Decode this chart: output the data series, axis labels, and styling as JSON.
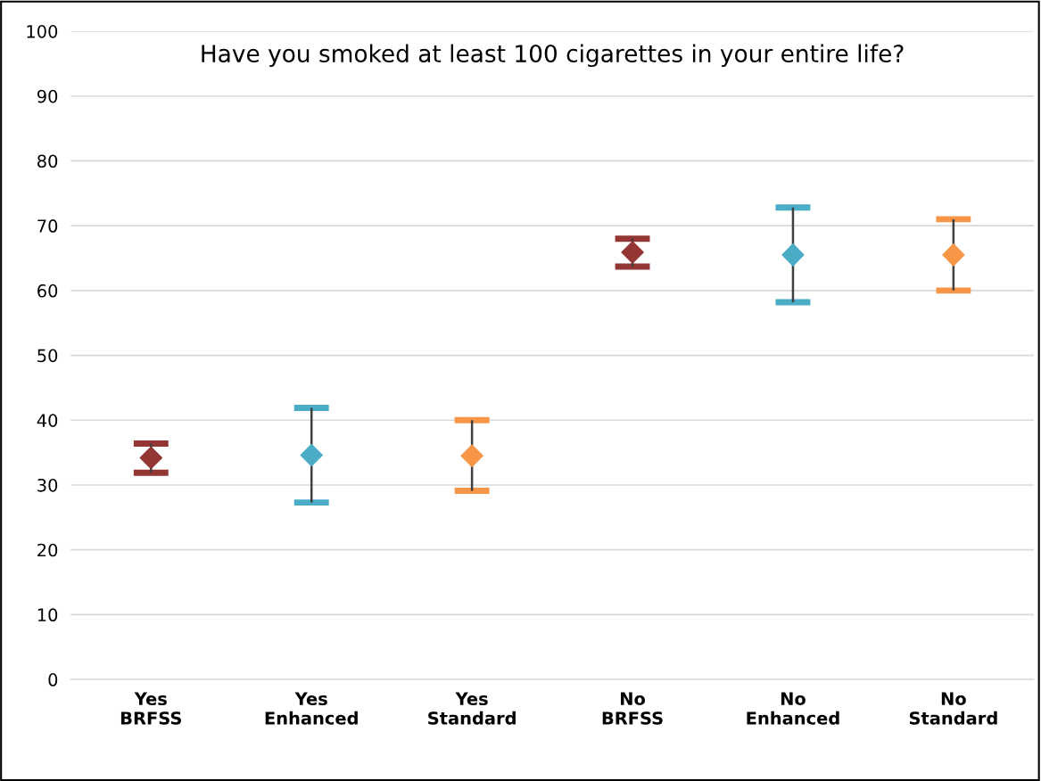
{
  "chart_data": {
    "type": "scatter",
    "title": "Have you smoked at least 100 cigarettes in your entire life?",
    "categories": [
      "Yes\nBRFSS",
      "Yes\nEnhanced",
      "Yes\nStandard",
      "No\nBRFSS",
      "No\nEnhanced",
      "No\nStandard"
    ],
    "series": [
      {
        "values": [
          34.2,
          34.6,
          34.5,
          65.9,
          65.5,
          65.5
        ],
        "colors": [
          "#943634",
          "#4bacc6",
          "#f79646",
          "#943634",
          "#4bacc6",
          "#f79646"
        ],
        "errors": [
          [
            31.9,
            36.4
          ],
          [
            27.3,
            41.9
          ],
          [
            29.1,
            40.0
          ],
          [
            63.7,
            68.0
          ],
          [
            58.2,
            72.8
          ],
          [
            60.0,
            71.0
          ]
        ]
      }
    ],
    "ylim": [
      0,
      100
    ],
    "yticks": [
      0,
      10,
      20,
      30,
      40,
      50,
      60,
      70,
      80,
      90,
      100
    ],
    "grid": "y",
    "marker": "diamond"
  }
}
